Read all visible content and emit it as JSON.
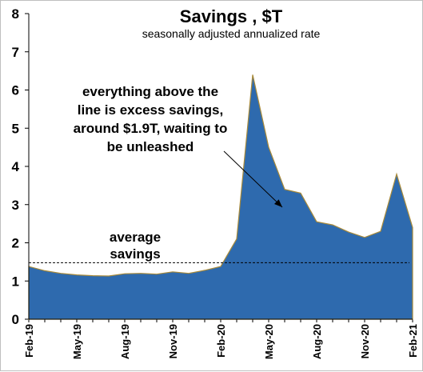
{
  "chart_data": {
    "type": "area",
    "title": "Savings , $T",
    "subtitle": "seasonally adjusted annualized rate",
    "x": [
      "Feb-19",
      "Mar-19",
      "Apr-19",
      "May-19",
      "Jun-19",
      "Jul-19",
      "Aug-19",
      "Sep-19",
      "Oct-19",
      "Nov-19",
      "Dec-19",
      "Jan-20",
      "Feb-20",
      "Mar-20",
      "Apr-20",
      "May-20",
      "Jun-20",
      "Jul-20",
      "Aug-20",
      "Sep-20",
      "Oct-20",
      "Nov-20",
      "Dec-20",
      "Jan-21",
      "Feb-21"
    ],
    "xtick_labels": [
      "Feb-19",
      "May-19",
      "Aug-19",
      "Nov-19",
      "Feb-20",
      "May-20",
      "Aug-20",
      "Nov-20",
      "Feb-21"
    ],
    "values": [
      1.38,
      1.27,
      1.2,
      1.16,
      1.14,
      1.13,
      1.19,
      1.2,
      1.18,
      1.24,
      1.2,
      1.28,
      1.38,
      2.1,
      6.4,
      4.5,
      3.4,
      3.3,
      2.55,
      2.47,
      2.28,
      2.14,
      2.3,
      3.8,
      2.4
    ],
    "ylim": [
      0,
      8
    ],
    "yticks": [
      0,
      1,
      2,
      3,
      4,
      5,
      6,
      7,
      8
    ],
    "average_line": 1.48,
    "fill_color": "#2e6aae",
    "edge_color": "#a88a3a",
    "annotations": [
      {
        "id": "excess",
        "lines": [
          "everything above the",
          "line is excess savings,",
          "around $1.9T, waiting to",
          "be unleashed"
        ]
      },
      {
        "id": "average",
        "lines": [
          "average",
          "savings"
        ]
      }
    ]
  }
}
